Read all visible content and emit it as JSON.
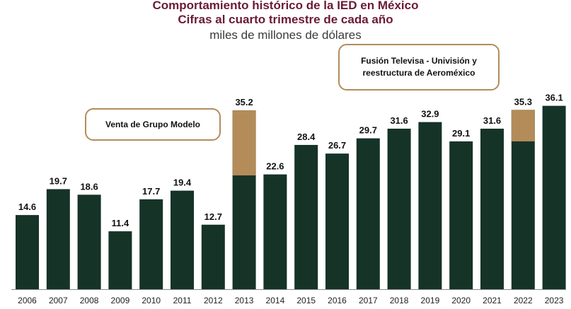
{
  "chart_data": {
    "type": "bar",
    "title": "Comportamiento histórico de la IED en México",
    "subtitle": "Cifras al cuarto trimestre de cada año",
    "unit": "miles de millones de dólares",
    "categories": [
      "2006",
      "2007",
      "2008",
      "2009",
      "2010",
      "2011",
      "2012",
      "2013",
      "2014",
      "2015",
      "2016",
      "2017",
      "2018",
      "2019",
      "2020",
      "2021",
      "2022",
      "2023"
    ],
    "values": [
      14.6,
      19.7,
      18.6,
      11.4,
      17.7,
      19.4,
      12.7,
      35.2,
      22.6,
      28.4,
      26.7,
      29.7,
      31.6,
      32.9,
      29.1,
      31.6,
      35.3,
      36.1
    ],
    "highlight_segments": [
      {
        "category": "2013",
        "from": 22.4,
        "to": 35.2
      },
      {
        "category": "2022",
        "from": 29.1,
        "to": 35.3
      }
    ],
    "annotations": [
      {
        "text": "Venta de Grupo Modelo"
      },
      {
        "text_lines": [
          "Fusión Televisa - Univisión y",
          "reestructura de Aeroméxico"
        ]
      }
    ],
    "ylim": [
      0,
      38
    ],
    "colors": {
      "bar": "#163328",
      "highlight": "#b38c5a",
      "title": "#6b1a36",
      "axis": "#888888"
    }
  }
}
